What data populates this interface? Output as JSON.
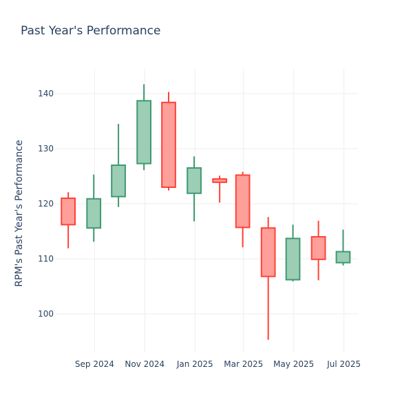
{
  "chart_data": {
    "type": "candlestick",
    "title": "Past Year's Performance",
    "xlabel": "",
    "ylabel": "RPM's Past Year's Performance",
    "ylim": [
      93,
      144.5
    ],
    "xlim": [
      "2024-07-15",
      "2025-07-18"
    ],
    "grid": true,
    "colors": {
      "increasing_line": "#3d9970",
      "increasing_fill": "#9ccdb5",
      "decreasing_line": "#ff4136",
      "decreasing_fill": "#ff9f9a",
      "grid": "#eeeeee",
      "text": "#2a3f5f"
    },
    "y_ticks": [
      100,
      110,
      120,
      130,
      140
    ],
    "x_ticks": [
      {
        "date": "2024-09-01",
        "label": "Sep 2024"
      },
      {
        "date": "2024-11-01",
        "label": "Nov 2024"
      },
      {
        "date": "2025-01-01",
        "label": "Jan 2025"
      },
      {
        "date": "2025-03-01",
        "label": "Mar 2025"
      },
      {
        "date": "2025-05-01",
        "label": "May 2025"
      },
      {
        "date": "2025-07-01",
        "label": "Jul 2025"
      }
    ],
    "candles": [
      {
        "date": "2024-07-31",
        "open": 121.0,
        "high": 122.1,
        "low": 111.9,
        "close": 116.2
      },
      {
        "date": "2024-08-31",
        "open": 115.6,
        "high": 125.3,
        "low": 113.1,
        "close": 120.9
      },
      {
        "date": "2024-09-30",
        "open": 121.3,
        "high": 134.5,
        "low": 119.4,
        "close": 127.0
      },
      {
        "date": "2024-10-31",
        "open": 127.3,
        "high": 141.7,
        "low": 126.1,
        "close": 138.7
      },
      {
        "date": "2024-11-30",
        "open": 138.4,
        "high": 140.3,
        "low": 122.4,
        "close": 123.0
      },
      {
        "date": "2024-12-31",
        "open": 121.9,
        "high": 128.6,
        "low": 116.8,
        "close": 126.5
      },
      {
        "date": "2025-01-31",
        "open": 124.5,
        "high": 125.1,
        "low": 120.2,
        "close": 123.9
      },
      {
        "date": "2025-02-28",
        "open": 125.2,
        "high": 125.8,
        "low": 112.1,
        "close": 115.7
      },
      {
        "date": "2025-03-31",
        "open": 115.6,
        "high": 117.6,
        "low": 95.3,
        "close": 106.8
      },
      {
        "date": "2025-04-30",
        "open": 106.2,
        "high": 116.2,
        "low": 105.9,
        "close": 113.7
      },
      {
        "date": "2025-05-31",
        "open": 114.0,
        "high": 116.9,
        "low": 106.1,
        "close": 109.9
      },
      {
        "date": "2025-06-30",
        "open": 109.3,
        "high": 115.3,
        "low": 108.8,
        "close": 111.3
      }
    ]
  }
}
